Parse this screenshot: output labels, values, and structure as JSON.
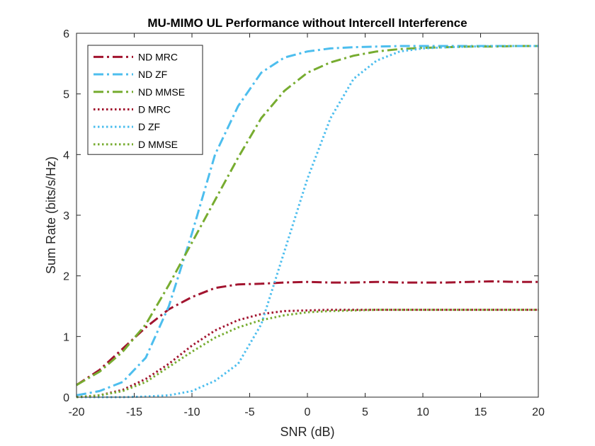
{
  "chart_data": {
    "type": "line",
    "title": "MU-MIMO UL Performance without Intercell Interference",
    "xlabel": "SNR (dB)",
    "ylabel": "Sum Rate (bits/s/Hz)",
    "xlim": [
      -20,
      20
    ],
    "ylim": [
      0,
      6
    ],
    "xticks": [
      -20,
      -15,
      -10,
      -5,
      0,
      5,
      10,
      15,
      20
    ],
    "yticks": [
      0,
      1,
      2,
      3,
      4,
      5,
      6
    ],
    "grid": false,
    "legend_position": "top-left",
    "x": [
      -20,
      -18,
      -16,
      -14,
      -12,
      -10,
      -8,
      -6,
      -4,
      -2,
      0,
      2,
      4,
      6,
      8,
      10,
      12,
      14,
      16,
      18,
      20
    ],
    "series": [
      {
        "name": "ND MRC",
        "style": "dash-dot",
        "color": "#A2142F",
        "values": [
          0.2,
          0.45,
          0.8,
          1.15,
          1.45,
          1.65,
          1.8,
          1.86,
          1.87,
          1.89,
          1.9,
          1.89,
          1.89,
          1.9,
          1.89,
          1.89,
          1.89,
          1.9,
          1.91,
          1.9,
          1.9
        ]
      },
      {
        "name": "ND ZF",
        "style": "dash-dot",
        "color": "#4DBEEE",
        "values": [
          0.03,
          0.1,
          0.25,
          0.65,
          1.5,
          2.7,
          4.0,
          4.8,
          5.35,
          5.6,
          5.7,
          5.75,
          5.77,
          5.78,
          5.79,
          5.79,
          5.79,
          5.79,
          5.79,
          5.79,
          5.79
        ]
      },
      {
        "name": "ND MMSE",
        "style": "dash-dot",
        "color": "#77AC30",
        "values": [
          0.2,
          0.42,
          0.75,
          1.2,
          1.85,
          2.55,
          3.25,
          3.95,
          4.6,
          5.05,
          5.35,
          5.52,
          5.63,
          5.7,
          5.74,
          5.76,
          5.77,
          5.78,
          5.78,
          5.79,
          5.79
        ]
      },
      {
        "name": "D MRC",
        "style": "dotted",
        "color": "#A2142F",
        "values": [
          0.0,
          0.03,
          0.12,
          0.3,
          0.55,
          0.85,
          1.1,
          1.27,
          1.37,
          1.42,
          1.43,
          1.44,
          1.44,
          1.44,
          1.44,
          1.44,
          1.44,
          1.44,
          1.44,
          1.44,
          1.44
        ]
      },
      {
        "name": "D ZF",
        "style": "dotted",
        "color": "#4DBEEE",
        "values": [
          0.0,
          0.0,
          0.0,
          0.01,
          0.03,
          0.1,
          0.27,
          0.55,
          1.2,
          2.4,
          3.6,
          4.6,
          5.25,
          5.55,
          5.7,
          5.75,
          5.77,
          5.78,
          5.79,
          5.79,
          5.79
        ]
      },
      {
        "name": "D MMSE",
        "style": "dotted",
        "color": "#77AC30",
        "values": [
          0.0,
          0.03,
          0.1,
          0.25,
          0.5,
          0.75,
          0.98,
          1.15,
          1.27,
          1.35,
          1.4,
          1.42,
          1.43,
          1.44,
          1.44,
          1.44,
          1.44,
          1.44,
          1.44,
          1.44,
          1.44
        ]
      }
    ]
  }
}
